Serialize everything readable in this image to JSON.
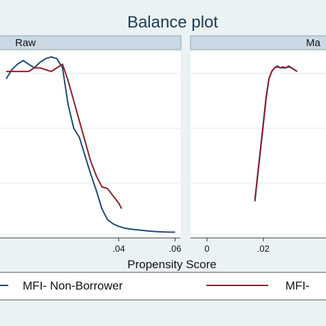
{
  "chart_data": {
    "type": "line",
    "title": "Balance plot",
    "xlabel": "Propensity Score",
    "legend": {
      "placement": "bottom",
      "entries": [
        "MFI- Non-Borrower",
        "MFI-"
      ]
    },
    "colors": {
      "series_a": "#1a4a72",
      "series_b": "#8b1e2a",
      "header_fill": "#c9d8e3",
      "panel_bg": "#ffffff",
      "background": "#eaf2f3"
    },
    "grid": true,
    "panels": [
      {
        "label": "Raw",
        "xlim": [
          -0.0022,
          0.0606
        ],
        "ylim": [
          0,
          1
        ],
        "x_ticks": [
          ".04",
          ".06"
        ],
        "x_tick_values": [
          0.04,
          0.06
        ],
        "grid_y": [
          0.02,
          0.3,
          0.6,
          0.9
        ],
        "series": [
          {
            "name": "MFI- Non-Borrower",
            "x": [
              0.0,
              0.002,
              0.004,
              0.006,
              0.008,
              0.01,
              0.012,
              0.014,
              0.016,
              0.018,
              0.02,
              0.022,
              0.024,
              0.026,
              0.028,
              0.03,
              0.032,
              0.034,
              0.036,
              0.038,
              0.04,
              0.042,
              0.044,
              0.046,
              0.048,
              0.05,
              0.052,
              0.054,
              0.056,
              0.058,
              0.06
            ],
            "y": [
              0.87,
              0.92,
              0.95,
              0.97,
              0.95,
              0.93,
              0.96,
              0.98,
              0.99,
              0.98,
              0.93,
              0.73,
              0.6,
              0.55,
              0.45,
              0.35,
              0.26,
              0.16,
              0.1,
              0.077,
              0.063,
              0.054,
              0.049,
              0.045,
              0.042,
              0.039,
              0.036,
              0.034,
              0.033,
              0.032,
              0.032
            ]
          },
          {
            "name": "MFI-",
            "x": [
              0.0,
              0.002,
              0.004,
              0.006,
              0.008,
              0.01,
              0.012,
              0.014,
              0.016,
              0.018,
              0.02,
              0.022,
              0.024,
              0.026,
              0.028,
              0.03,
              0.032,
              0.034,
              0.036,
              0.038,
              0.04,
              0.041
            ],
            "y": [
              0.91,
              0.91,
              0.91,
              0.91,
              0.91,
              0.93,
              0.93,
              0.92,
              0.91,
              0.93,
              0.95,
              0.86,
              0.75,
              0.64,
              0.53,
              0.42,
              0.34,
              0.28,
              0.27,
              0.23,
              0.19,
              0.16
            ]
          }
        ]
      },
      {
        "label": "Ma",
        "xlim": [
          -0.0022,
          0.0606
        ],
        "ylim": [
          0,
          1
        ],
        "x_ticks": [
          "0",
          ".02"
        ],
        "x_tick_values": [
          0.0,
          0.02
        ],
        "grid_y": [
          0.02,
          0.3,
          0.6,
          0.9
        ],
        "series": [
          {
            "name": "MFI- Non-Borrower",
            "x": [
              0.017,
              0.018,
              0.019,
              0.02,
              0.021,
              0.022,
              0.023,
              0.024,
              0.025,
              0.026,
              0.027,
              0.028,
              0.029,
              0.03,
              0.031,
              0.032
            ],
            "y": [
              0.2,
              0.34,
              0.48,
              0.62,
              0.76,
              0.87,
              0.91,
              0.93,
              0.94,
              0.93,
              0.93,
              0.93,
              0.94,
              0.93,
              0.92,
              0.91
            ]
          },
          {
            "name": "MFI-",
            "x": [
              0.017,
              0.018,
              0.019,
              0.02,
              0.021,
              0.022,
              0.023,
              0.024,
              0.025,
              0.026,
              0.027,
              0.028,
              0.029,
              0.03,
              0.031,
              0.032
            ],
            "y": [
              0.21,
              0.35,
              0.49,
              0.63,
              0.77,
              0.87,
              0.91,
              0.93,
              0.935,
              0.93,
              0.935,
              0.93,
              0.935,
              0.93,
              0.92,
              0.91
            ]
          }
        ]
      }
    ]
  }
}
